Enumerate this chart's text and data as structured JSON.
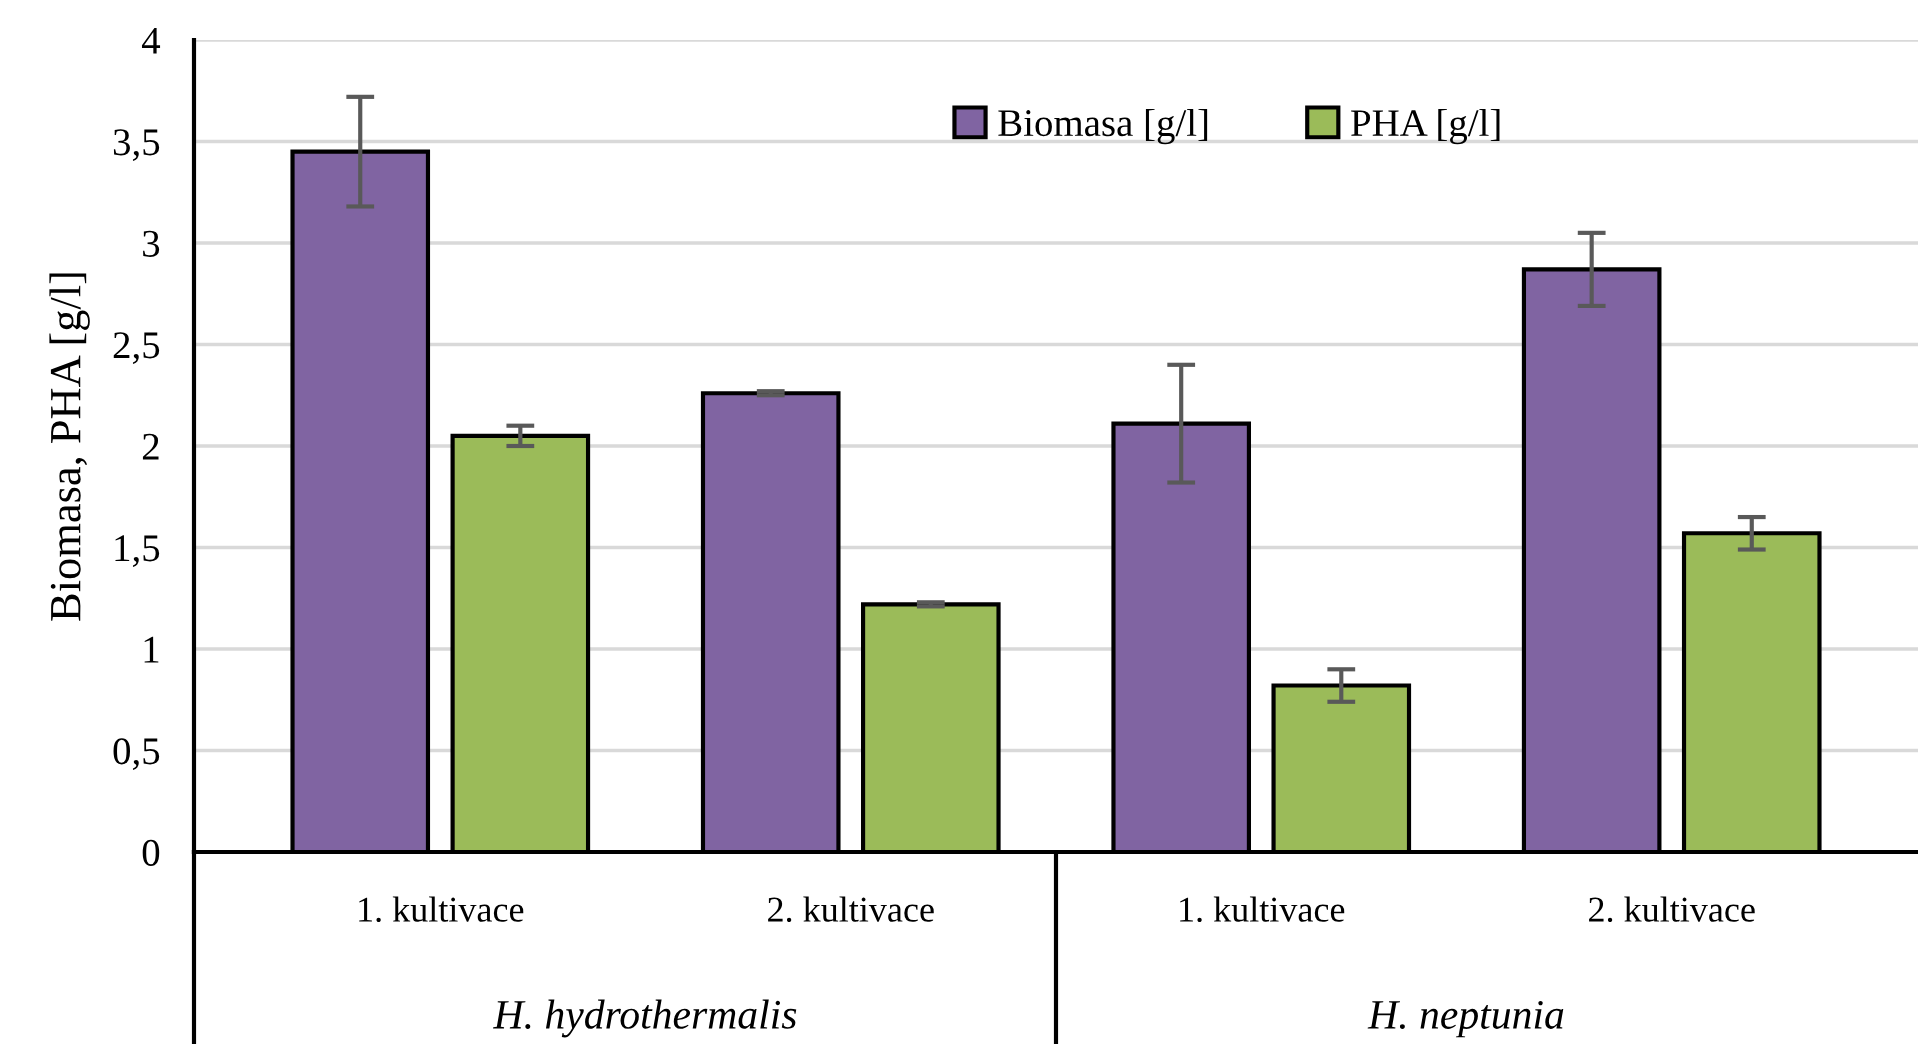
{
  "chart_data": {
    "type": "bar",
    "ylabel": "Biomasa, PHA [g/l]",
    "categories": [
      "1. kultivace",
      "2. kultivace",
      "1. kultivace",
      "2. kultivace"
    ],
    "series": [
      {
        "name": "Biomasa [g/l]",
        "color": "#8064a2",
        "values": [
          3.45,
          2.26,
          2.11,
          2.87
        ],
        "errors": [
          0.27,
          0.01,
          0.29,
          0.18
        ]
      },
      {
        "name": "PHA [g/l]",
        "color": "#9bbb59",
        "values": [
          2.05,
          1.22,
          0.82,
          1.57
        ],
        "errors": [
          0.05,
          0.01,
          0.08,
          0.08
        ]
      }
    ],
    "annotations": [
      "H. hydrothermalis",
      "H. neptunia"
    ],
    "ylim": [
      0,
      4
    ],
    "yticks": [
      0,
      {
        "value": 0.5,
        "label": "0,5"
      },
      1,
      {
        "value": 1.5,
        "label": "1,5"
      },
      2,
      {
        "value": 2.5,
        "label": "2,5"
      },
      3,
      {
        "value": 3.5,
        "label": "3,5"
      },
      4
    ],
    "grid": "y",
    "legend": "top"
  }
}
